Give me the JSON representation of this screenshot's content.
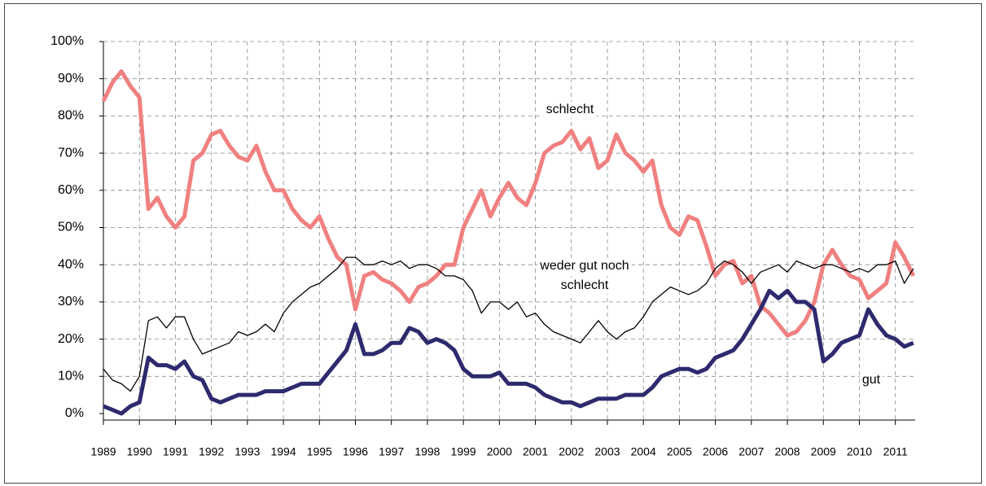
{
  "chart_data": {
    "type": "line",
    "annotations": [
      "schlecht",
      "weder gut noch",
      "schlecht",
      "gut"
    ],
    "x": [
      1989,
      1989.25,
      1989.5,
      1989.75,
      1990,
      1990.25,
      1990.5,
      1990.75,
      1991,
      1991.25,
      1991.5,
      1991.75,
      1992,
      1992.25,
      1992.5,
      1992.75,
      1993,
      1993.25,
      1993.5,
      1993.75,
      1994,
      1994.25,
      1994.5,
      1994.75,
      1995,
      1995.25,
      1995.5,
      1995.75,
      1996,
      1996.25,
      1996.5,
      1996.75,
      1997,
      1997.25,
      1997.5,
      1997.75,
      1998,
      1998.25,
      1998.5,
      1998.75,
      1999,
      1999.25,
      1999.5,
      1999.75,
      2000,
      2000.25,
      2000.5,
      2000.75,
      2001,
      2001.25,
      2001.5,
      2001.75,
      2002,
      2002.25,
      2002.5,
      2002.75,
      2003,
      2003.25,
      2003.5,
      2003.75,
      2004,
      2004.25,
      2004.5,
      2004.75,
      2005,
      2005.25,
      2005.5,
      2005.75,
      2006,
      2006.25,
      2006.5,
      2006.75,
      2007,
      2007.25,
      2007.5,
      2007.75,
      2008,
      2008.25,
      2008.5,
      2008.75,
      2009,
      2009.25,
      2009.5,
      2009.75,
      2010,
      2010.25,
      2010.5,
      2010.75,
      2011,
      2011.25,
      2011.5
    ],
    "series": [
      {
        "name": "schlecht",
        "color": "#f08080",
        "width": 5,
        "values": [
          84,
          89,
          92,
          88,
          85,
          55,
          58,
          53,
          50,
          53,
          68,
          70,
          75,
          76,
          72,
          69,
          68,
          72,
          65,
          60,
          60,
          55,
          52,
          50,
          53,
          47,
          42,
          40,
          28,
          37,
          38,
          36,
          35,
          33,
          30,
          34,
          35,
          37,
          40,
          40,
          50,
          55,
          60,
          53,
          58,
          62,
          58,
          56,
          62,
          70,
          72,
          73,
          76,
          71,
          74,
          66,
          68,
          75,
          70,
          68,
          65,
          68,
          56,
          50,
          48,
          53,
          52,
          45,
          37,
          40,
          41,
          35,
          37,
          29,
          27,
          24,
          21,
          22,
          25,
          30,
          40,
          44,
          40,
          37,
          36,
          31,
          33,
          35,
          46,
          42,
          37
        ]
      },
      {
        "name": "weder gut noch schlecht",
        "color": "#000000",
        "width": 1.3,
        "values": [
          12,
          9,
          8,
          6,
          10,
          25,
          26,
          23,
          26,
          26,
          20,
          16,
          17,
          18,
          19,
          22,
          21,
          22,
          24,
          22,
          27,
          30,
          32,
          34,
          35,
          37,
          39,
          42,
          42,
          40,
          40,
          41,
          40,
          41,
          39,
          40,
          40,
          39,
          37,
          37,
          36,
          33,
          27,
          30,
          30,
          28,
          30,
          26,
          27,
          24,
          22,
          21,
          20,
          19,
          22,
          25,
          22,
          20,
          22,
          23,
          26,
          30,
          32,
          34,
          33,
          32,
          33,
          35,
          39,
          41,
          40,
          38,
          35,
          38,
          39,
          40,
          38,
          41,
          40,
          39,
          40,
          40,
          39,
          38,
          39,
          38,
          40,
          40,
          41,
          35,
          39
        ]
      },
      {
        "name": "gut",
        "color": "#2e2a6e",
        "width": 5,
        "values": [
          2,
          1,
          0,
          2,
          3,
          15,
          13,
          13,
          12,
          14,
          10,
          9,
          4,
          3,
          4,
          5,
          5,
          5,
          6,
          6,
          6,
          7,
          8,
          8,
          8,
          11,
          14,
          17,
          24,
          16,
          16,
          17,
          19,
          19,
          23,
          22,
          19,
          20,
          19,
          17,
          12,
          10,
          10,
          10,
          11,
          8,
          8,
          8,
          7,
          5,
          4,
          3,
          3,
          2,
          3,
          4,
          4,
          4,
          5,
          5,
          5,
          7,
          10,
          11,
          12,
          12,
          11,
          12,
          15,
          16,
          17,
          20,
          24,
          28,
          33,
          31,
          33,
          30,
          30,
          28,
          14,
          16,
          19,
          20,
          21,
          28,
          24,
          21,
          20,
          18,
          19
        ]
      }
    ],
    "xlim": [
      1989,
      2011.55
    ],
    "xticks": [
      1989,
      1990,
      1991,
      1992,
      1993,
      1994,
      1995,
      1996,
      1997,
      1998,
      1999,
      2000,
      2001,
      2002,
      2003,
      2004,
      2005,
      2006,
      2007,
      2008,
      2009,
      2010,
      2011
    ],
    "ylim": [
      0,
      100
    ],
    "yticks": [
      {
        "value": 0,
        "label": "0%"
      },
      {
        "value": 10,
        "label": "10%"
      },
      {
        "value": 20,
        "label": "20%"
      },
      {
        "value": 30,
        "label": "30%"
      },
      {
        "value": 40,
        "label": "40%"
      },
      {
        "value": 50,
        "label": "50%"
      },
      {
        "value": 60,
        "label": "60%"
      },
      {
        "value": 70,
        "label": "70%"
      },
      {
        "value": 80,
        "label": "80%"
      },
      {
        "value": 90,
        "label": "90%"
      },
      {
        "value": 100,
        "label": "100%"
      }
    ],
    "grid": true
  }
}
